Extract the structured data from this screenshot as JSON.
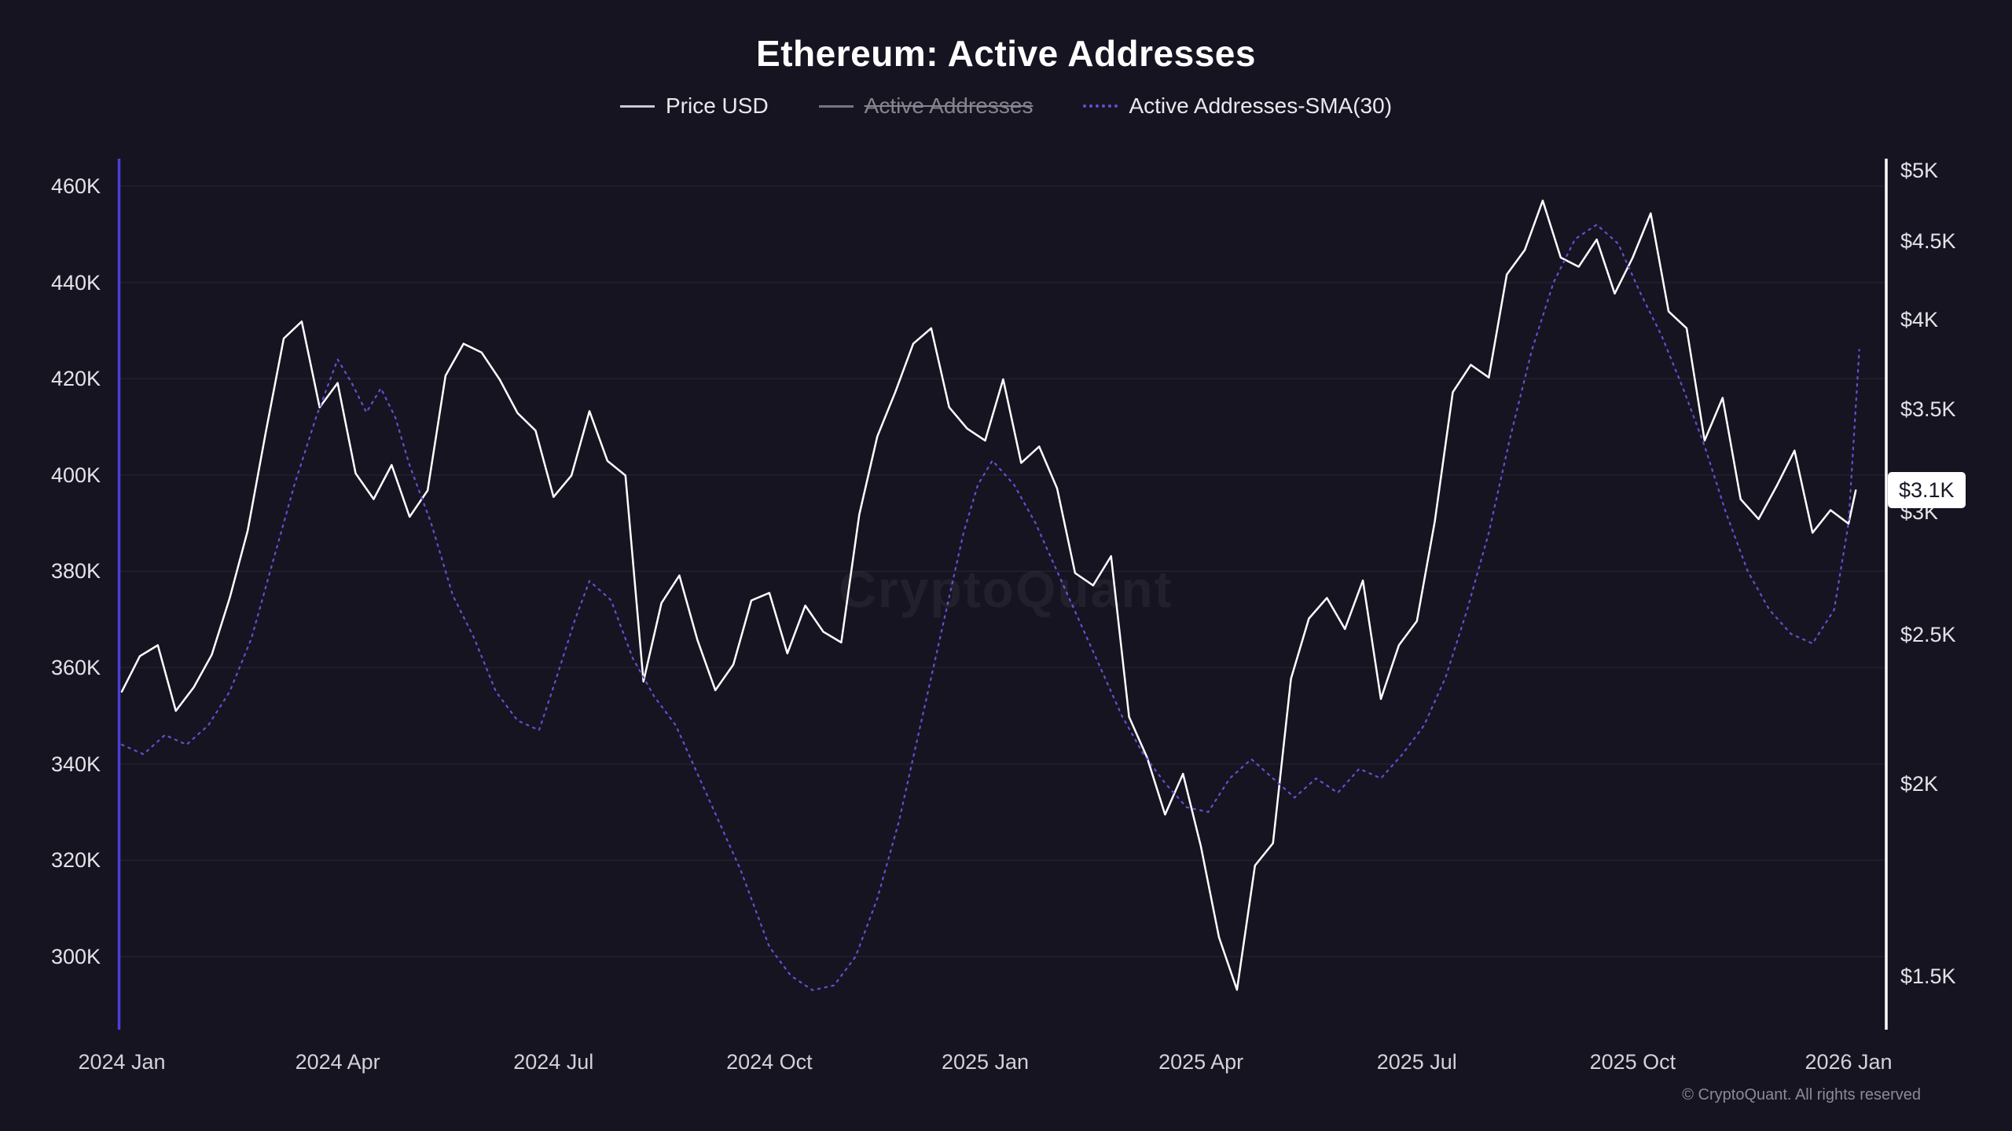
{
  "page": {
    "watermark": "CryptoQuant",
    "footer": "© CryptoQuant. All rights reserved"
  },
  "chart_data": {
    "type": "line",
    "title": "Ethereum: Active Addresses",
    "legend": [
      {
        "label": "Price USD",
        "color": "#ffffff",
        "style": "solid",
        "disabled": false
      },
      {
        "label": "Active Addresses",
        "color": "#85848d",
        "style": "solid",
        "disabled": true
      },
      {
        "label": "Active Addresses-SMA(30)",
        "color": "#5e52d5",
        "style": "dotted",
        "disabled": false
      }
    ],
    "colors": {
      "background": "#171421",
      "grid": "rgba(255,255,255,0.055)",
      "start_line": "#4b3fd6",
      "axis_line": "#ffffff",
      "price_line": "#ffffff",
      "sma_line": "#5e52d5",
      "badge_bg": "#ffffff",
      "badge_text": "#1a1725"
    },
    "x_axis": {
      "unit": "months since 2024-01",
      "ticks": [
        {
          "label": "2024 Jan",
          "t": 0
        },
        {
          "label": "2024 Apr",
          "t": 3
        },
        {
          "label": "2024 Jul",
          "t": 6
        },
        {
          "label": "2024 Oct",
          "t": 9
        },
        {
          "label": "2025 Jan",
          "t": 12
        },
        {
          "label": "2025 Apr",
          "t": 15
        },
        {
          "label": "2025 Jul",
          "t": 18
        },
        {
          "label": "2025 Oct",
          "t": 21
        },
        {
          "label": "2026 Jan",
          "t": 24
        }
      ]
    },
    "left_axis": {
      "title": "Active Addresses",
      "scale": "linear",
      "ticks": [
        {
          "label": "460K",
          "value": 460000
        },
        {
          "label": "440K",
          "value": 440000
        },
        {
          "label": "420K",
          "value": 420000
        },
        {
          "label": "400K",
          "value": 400000
        },
        {
          "label": "380K",
          "value": 380000
        },
        {
          "label": "360K",
          "value": 360000
        },
        {
          "label": "340K",
          "value": 340000
        },
        {
          "label": "320K",
          "value": 320000
        },
        {
          "label": "300K",
          "value": 300000
        }
      ]
    },
    "right_axis": {
      "title": "Price USD",
      "scale": "log",
      "ticks": [
        {
          "label": "$5K",
          "value": 5000
        },
        {
          "label": "$4.5K",
          "value": 4500
        },
        {
          "label": "$4K",
          "value": 4000
        },
        {
          "label": "$3.5K",
          "value": 3500
        },
        {
          "label": "$3K",
          "value": 3000
        },
        {
          "label": "$2.5K",
          "value": 2500
        },
        {
          "label": "$2K",
          "value": 2000
        },
        {
          "label": "$1.5K",
          "value": 1500
        }
      ]
    },
    "axes_range": {
      "left_top": 465700,
      "left_bottom": 284800,
      "right_top": 5089,
      "right_bottom": 1385
    },
    "price_badge": {
      "label": "$3.1K",
      "value": 3100
    },
    "series": [
      {
        "name": "Price USD",
        "axis": "right",
        "unit": "USD",
        "color": "#ffffff",
        "style": "solid",
        "points": [
          [
            0.0,
            2295
          ],
          [
            0.25,
            2420
          ],
          [
            0.5,
            2460
          ],
          [
            0.75,
            2230
          ],
          [
            1.0,
            2310
          ],
          [
            1.25,
            2425
          ],
          [
            1.5,
            2640
          ],
          [
            1.75,
            2920
          ],
          [
            2.0,
            3380
          ],
          [
            2.25,
            3890
          ],
          [
            2.5,
            3990
          ],
          [
            2.75,
            3510
          ],
          [
            3.0,
            3640
          ],
          [
            3.25,
            3180
          ],
          [
            3.5,
            3060
          ],
          [
            3.75,
            3220
          ],
          [
            4.0,
            2980
          ],
          [
            4.25,
            3100
          ],
          [
            4.5,
            3680
          ],
          [
            4.75,
            3860
          ],
          [
            5.0,
            3810
          ],
          [
            5.25,
            3660
          ],
          [
            5.5,
            3480
          ],
          [
            5.75,
            3390
          ],
          [
            6.0,
            3070
          ],
          [
            6.25,
            3170
          ],
          [
            6.5,
            3490
          ],
          [
            6.75,
            3240
          ],
          [
            7.0,
            3170
          ],
          [
            7.25,
            2330
          ],
          [
            7.5,
            2620
          ],
          [
            7.75,
            2730
          ],
          [
            8.0,
            2480
          ],
          [
            8.25,
            2300
          ],
          [
            8.5,
            2390
          ],
          [
            8.75,
            2630
          ],
          [
            9.0,
            2660
          ],
          [
            9.25,
            2430
          ],
          [
            9.5,
            2610
          ],
          [
            9.75,
            2510
          ],
          [
            10.0,
            2470
          ],
          [
            10.25,
            2990
          ],
          [
            10.5,
            3360
          ],
          [
            10.75,
            3590
          ],
          [
            11.0,
            3860
          ],
          [
            11.25,
            3950
          ],
          [
            11.5,
            3510
          ],
          [
            11.75,
            3400
          ],
          [
            12.0,
            3340
          ],
          [
            12.25,
            3660
          ],
          [
            12.5,
            3230
          ],
          [
            12.75,
            3310
          ],
          [
            13.0,
            3110
          ],
          [
            13.25,
            2740
          ],
          [
            13.5,
            2690
          ],
          [
            13.75,
            2810
          ],
          [
            14.0,
            2210
          ],
          [
            14.25,
            2080
          ],
          [
            14.5,
            1910
          ],
          [
            14.75,
            2030
          ],
          [
            15.0,
            1820
          ],
          [
            15.25,
            1590
          ],
          [
            15.5,
            1470
          ],
          [
            15.75,
            1770
          ],
          [
            16.0,
            1830
          ],
          [
            16.25,
            2340
          ],
          [
            16.5,
            2560
          ],
          [
            16.75,
            2640
          ],
          [
            17.0,
            2520
          ],
          [
            17.25,
            2710
          ],
          [
            17.5,
            2270
          ],
          [
            17.75,
            2460
          ],
          [
            18.0,
            2550
          ],
          [
            18.25,
            2960
          ],
          [
            18.5,
            3590
          ],
          [
            18.75,
            3740
          ],
          [
            19.0,
            3670
          ],
          [
            19.25,
            4280
          ],
          [
            19.5,
            4440
          ],
          [
            19.75,
            4780
          ],
          [
            20.0,
            4390
          ],
          [
            20.25,
            4330
          ],
          [
            20.5,
            4510
          ],
          [
            20.75,
            4160
          ],
          [
            21.0,
            4390
          ],
          [
            21.25,
            4690
          ],
          [
            21.5,
            4050
          ],
          [
            21.75,
            3950
          ],
          [
            22.0,
            3340
          ],
          [
            22.25,
            3560
          ],
          [
            22.5,
            3060
          ],
          [
            22.75,
            2970
          ],
          [
            23.0,
            3120
          ],
          [
            23.25,
            3290
          ],
          [
            23.5,
            2910
          ],
          [
            23.75,
            3010
          ],
          [
            24.0,
            2950
          ],
          [
            24.1,
            3100
          ]
        ]
      },
      {
        "name": "Active Addresses",
        "axis": "left",
        "unit": "addresses",
        "color": "#85848d",
        "style": "solid",
        "disabled": true,
        "points": []
      },
      {
        "name": "Active Addresses-SMA(30)",
        "axis": "left",
        "unit": "addresses",
        "value_multiplier": 1000,
        "color": "#5e52d5",
        "style": "dotted",
        "points": [
          [
            0.0,
            344
          ],
          [
            0.3,
            342
          ],
          [
            0.6,
            346
          ],
          [
            0.9,
            344
          ],
          [
            1.2,
            348
          ],
          [
            1.5,
            355
          ],
          [
            1.8,
            366
          ],
          [
            2.1,
            382
          ],
          [
            2.4,
            398
          ],
          [
            2.7,
            412
          ],
          [
            3.0,
            424
          ],
          [
            3.2,
            419
          ],
          [
            3.4,
            413
          ],
          [
            3.6,
            418
          ],
          [
            3.8,
            412
          ],
          [
            4.0,
            402
          ],
          [
            4.3,
            390
          ],
          [
            4.6,
            375
          ],
          [
            4.9,
            366
          ],
          [
            5.2,
            355
          ],
          [
            5.5,
            349
          ],
          [
            5.8,
            347
          ],
          [
            6.0,
            356
          ],
          [
            6.3,
            370
          ],
          [
            6.5,
            378
          ],
          [
            6.8,
            374
          ],
          [
            7.1,
            362
          ],
          [
            7.4,
            354
          ],
          [
            7.7,
            348
          ],
          [
            8.0,
            338
          ],
          [
            8.3,
            328
          ],
          [
            8.6,
            318
          ],
          [
            9.0,
            302
          ],
          [
            9.3,
            296
          ],
          [
            9.6,
            293
          ],
          [
            9.9,
            294
          ],
          [
            10.2,
            300
          ],
          [
            10.5,
            312
          ],
          [
            10.8,
            328
          ],
          [
            11.1,
            348
          ],
          [
            11.4,
            368
          ],
          [
            11.7,
            388
          ],
          [
            11.9,
            398
          ],
          [
            12.1,
            403
          ],
          [
            12.4,
            398
          ],
          [
            12.7,
            390
          ],
          [
            13.0,
            380
          ],
          [
            13.3,
            370
          ],
          [
            13.6,
            360
          ],
          [
            13.9,
            350
          ],
          [
            14.2,
            342
          ],
          [
            14.5,
            336
          ],
          [
            14.8,
            331
          ],
          [
            15.1,
            330
          ],
          [
            15.4,
            337
          ],
          [
            15.7,
            341
          ],
          [
            16.0,
            337
          ],
          [
            16.3,
            333
          ],
          [
            16.6,
            337
          ],
          [
            16.9,
            334
          ],
          [
            17.2,
            339
          ],
          [
            17.5,
            337
          ],
          [
            17.8,
            342
          ],
          [
            18.1,
            348
          ],
          [
            18.4,
            358
          ],
          [
            18.7,
            372
          ],
          [
            19.0,
            388
          ],
          [
            19.3,
            408
          ],
          [
            19.6,
            426
          ],
          [
            19.9,
            440
          ],
          [
            20.2,
            449
          ],
          [
            20.5,
            452
          ],
          [
            20.8,
            448
          ],
          [
            21.1,
            438
          ],
          [
            21.4,
            429
          ],
          [
            21.7,
            418
          ],
          [
            22.0,
            406
          ],
          [
            22.3,
            392
          ],
          [
            22.6,
            380
          ],
          [
            22.9,
            372
          ],
          [
            23.2,
            367
          ],
          [
            23.5,
            365
          ],
          [
            23.8,
            372
          ],
          [
            24.0,
            390
          ],
          [
            24.15,
            426
          ]
        ]
      }
    ]
  }
}
